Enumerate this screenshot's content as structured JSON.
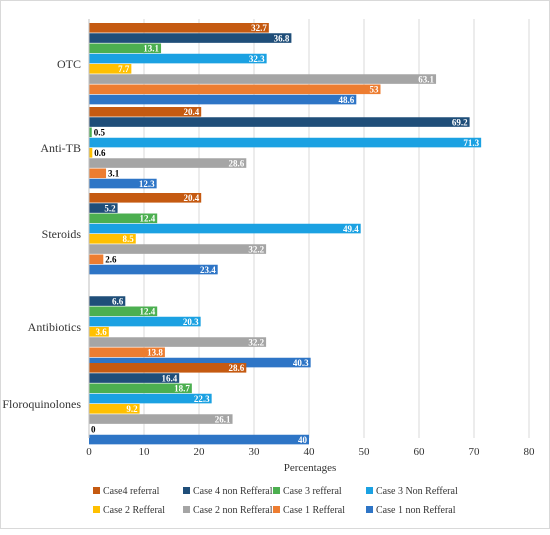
{
  "chart_data": {
    "type": "bar",
    "orientation": "horizontal",
    "xlabel": "Percentages",
    "ylabel": "",
    "xlim": [
      0,
      80
    ],
    "x_ticks": [
      0,
      10,
      20,
      30,
      40,
      50,
      60,
      70,
      80
    ],
    "grid": "vertical",
    "legend_position": "bottom",
    "categories": [
      "OTC",
      "Anti-TB",
      "Steroids",
      "Antibiotics",
      "Floroquinolones"
    ],
    "series": [
      {
        "name": "Case4 referral",
        "color": "#C55A11",
        "values": [
          32.7,
          20.4,
          20.4,
          null,
          28.6
        ],
        "labels": [
          "32.7",
          "20.4",
          "20.4",
          "",
          "28.6"
        ]
      },
      {
        "name": "Case 4 non Refferal",
        "color": "#1F4E79",
        "values": [
          36.8,
          69.2,
          5.2,
          6.6,
          16.4
        ],
        "labels": [
          "36.8",
          "69.2",
          "5.2",
          "6.6",
          "16.4"
        ]
      },
      {
        "name": "Case 3 refferal",
        "color": "#4CAF50",
        "values": [
          13.1,
          0.5,
          12.4,
          12.4,
          18.7
        ],
        "labels": [
          "13.1",
          "0.5",
          "12.4",
          "12.4",
          "18.7"
        ]
      },
      {
        "name": "Case 3 Non Refferal",
        "color": "#1BA1E2",
        "values": [
          32.3,
          71.3,
          49.4,
          20.3,
          22.3
        ],
        "labels": [
          "32.3",
          "71.3",
          "49.4",
          "20.3",
          "22.3"
        ]
      },
      {
        "name": "Case 2 Refferal",
        "color": "#FFC000",
        "values": [
          7.7,
          0.6,
          8.5,
          3.6,
          9.2
        ],
        "labels": [
          "7.7",
          "0.6",
          "8.5",
          "3.6",
          "9.2"
        ]
      },
      {
        "name": "Case 2 non Refferal",
        "color": "#A5A5A5",
        "values": [
          63.1,
          28.6,
          32.2,
          32.2,
          26.1
        ],
        "labels": [
          "63.1",
          "28.6",
          "32.2",
          "32.2",
          "26.1"
        ]
      },
      {
        "name": "Case 1 Refferal",
        "color": "#ED7D31",
        "values": [
          53,
          3.1,
          2.6,
          13.8,
          0
        ],
        "labels": [
          "53",
          "3.1",
          "2.6",
          "13.8",
          "0"
        ]
      },
      {
        "name": "Case 1 non Refferal",
        "color": "#2E75C6",
        "values": [
          48.6,
          12.3,
          23.4,
          40.3,
          40
        ],
        "labels": [
          "48.6",
          "12.3",
          "23.4",
          "40.3",
          "40"
        ]
      }
    ]
  }
}
